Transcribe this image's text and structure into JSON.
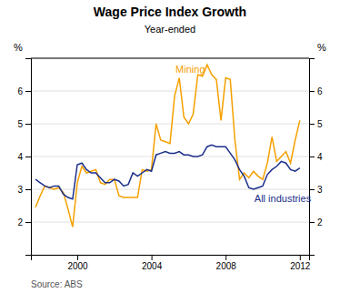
{
  "chart_data": {
    "type": "line",
    "title": "Wage Price Index Growth",
    "subtitle": "Year-ended",
    "ylabel": "%",
    "y2label": "%",
    "source": "Source: ABS",
    "x": [
      1997.75,
      1998.0,
      1998.25,
      1998.5,
      1998.75,
      1999.0,
      1999.25,
      1999.5,
      1999.75,
      2000.0,
      2000.25,
      2000.5,
      2000.75,
      2001.0,
      2001.25,
      2001.5,
      2001.75,
      2002.0,
      2002.25,
      2002.5,
      2002.75,
      2003.0,
      2003.25,
      2003.5,
      2003.75,
      2004.0,
      2004.25,
      2004.5,
      2004.75,
      2005.0,
      2005.25,
      2005.5,
      2005.75,
      2006.0,
      2006.25,
      2006.5,
      2006.75,
      2007.0,
      2007.25,
      2007.5,
      2007.75,
      2008.0,
      2008.25,
      2008.5,
      2008.75,
      2009.0,
      2009.25,
      2009.5,
      2009.75,
      2010.0,
      2010.25,
      2010.5,
      2010.75,
      2011.0,
      2011.25,
      2011.5,
      2011.75,
      2012.0
    ],
    "series": [
      {
        "color": "#F5A000",
        "values": [
          2.45,
          2.8,
          3.1,
          3.05,
          3.0,
          3.05,
          2.9,
          2.4,
          1.85,
          3.2,
          3.7,
          3.5,
          3.55,
          3.6,
          3.2,
          3.15,
          3.3,
          3.3,
          2.8,
          2.75,
          2.75,
          2.75,
          2.75,
          3.6,
          3.55,
          3.6,
          5.0,
          4.5,
          4.45,
          4.4,
          5.85,
          6.4,
          5.2,
          5.0,
          5.3,
          6.5,
          6.45,
          6.8,
          6.5,
          6.35,
          5.1,
          6.4,
          6.35,
          4.5,
          3.3,
          3.5,
          3.35,
          3.55,
          3.4,
          3.3,
          3.8,
          4.6,
          3.85,
          4.0,
          4.15,
          3.8,
          4.5,
          5.1
        ]
      },
      {
        "color": "#1B2F8A",
        "values": [
          3.3,
          3.2,
          3.1,
          3.05,
          3.1,
          3.1,
          2.85,
          2.75,
          2.7,
          3.75,
          3.8,
          3.6,
          3.5,
          3.5,
          3.35,
          3.2,
          3.2,
          3.3,
          3.25,
          3.1,
          3.15,
          3.5,
          3.4,
          3.5,
          3.6,
          3.55,
          4.05,
          4.1,
          4.15,
          4.1,
          4.1,
          4.15,
          4.05,
          4.05,
          4.0,
          4.0,
          4.05,
          4.3,
          4.35,
          4.3,
          4.3,
          4.3,
          4.1,
          3.9,
          3.6,
          3.4,
          3.05,
          3.0,
          3.05,
          3.1,
          3.45,
          3.6,
          3.7,
          3.85,
          3.8,
          3.6,
          3.55,
          3.65
        ]
      }
    ],
    "annotations": [
      {
        "text": "Mining",
        "x": 2005.3,
        "y": 6.55
      },
      {
        "text": "All industries",
        "x": 2009.55,
        "y": 2.62
      }
    ],
    "xlim": [
      1997.5,
      2012.5
    ],
    "xticks": [
      2000,
      2004,
      2008,
      2012
    ],
    "ylim": [
      1,
      7
    ],
    "yticks": [
      {
        "value": 1,
        "label": null
      },
      2,
      3,
      4,
      5,
      6,
      {
        "value": 7,
        "label": null
      }
    ],
    "y2lim": [
      1,
      7
    ],
    "y2ticks": [
      {
        "value": 1,
        "label": null
      },
      2,
      3,
      4,
      5,
      6,
      {
        "value": 7,
        "label": null
      }
    ],
    "grid": true
  }
}
